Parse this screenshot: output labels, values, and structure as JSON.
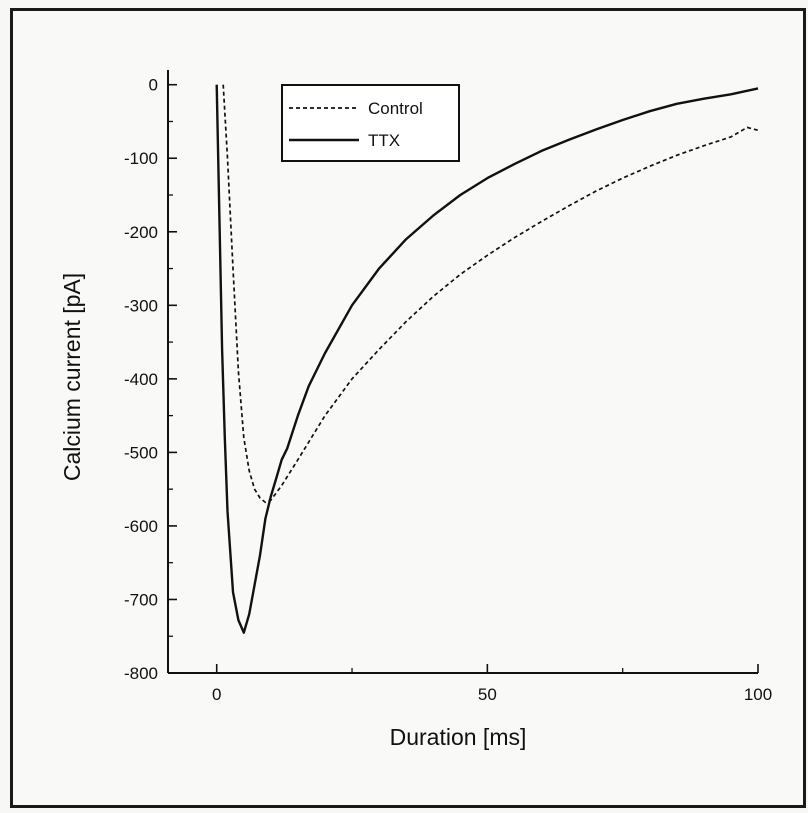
{
  "chart_data": {
    "type": "line",
    "xlabel": "Duration [ms]",
    "ylabel": "Calcium current [pA]",
    "xlim": [
      -9,
      100
    ],
    "ylim": [
      -800,
      20
    ],
    "xticks": [
      0,
      50,
      100
    ],
    "yticks": [
      0,
      -100,
      -200,
      -300,
      -400,
      -500,
      -600,
      -700,
      -800
    ],
    "xtick_labels": [
      "0",
      "50",
      "100"
    ],
    "ytick_labels": [
      "0",
      "-100",
      "-200",
      "-300",
      "-400",
      "-500",
      "-600",
      "-700",
      "-800"
    ],
    "grid": false,
    "legend_position": "top-left",
    "series": [
      {
        "name": "Control",
        "style": "dashed",
        "color": "#111111",
        "x": [
          1.2,
          2,
          3,
          4,
          5,
          6,
          7,
          8,
          9,
          10,
          12,
          15,
          20,
          25,
          30,
          35,
          40,
          45,
          50,
          55,
          60,
          65,
          70,
          75,
          80,
          85,
          90,
          95,
          98,
          100
        ],
        "y": [
          0,
          -100,
          -250,
          -390,
          -480,
          -525,
          -550,
          -562,
          -568,
          -565,
          -545,
          -510,
          -450,
          -400,
          -360,
          -322,
          -288,
          -258,
          -232,
          -208,
          -186,
          -165,
          -145,
          -127,
          -111,
          -96,
          -83,
          -71,
          -58,
          -62
        ]
      },
      {
        "name": "TTX",
        "style": "solid",
        "color": "#111111",
        "x": [
          0,
          0.5,
          1,
          1.5,
          2,
          3,
          4,
          5,
          6,
          7,
          8,
          9,
          10,
          11,
          12,
          13,
          15,
          17,
          20,
          25,
          30,
          35,
          40,
          45,
          50,
          55,
          60,
          65,
          70,
          75,
          80,
          85,
          90,
          95,
          100
        ],
        "y": [
          0,
          -180,
          -360,
          -480,
          -580,
          -690,
          -728,
          -745,
          -720,
          -680,
          -640,
          -590,
          -560,
          -535,
          -510,
          -495,
          -450,
          -410,
          -365,
          -300,
          -250,
          -210,
          -178,
          -150,
          -127,
          -108,
          -90,
          -75,
          -61,
          -48,
          -36,
          -26,
          -19,
          -13,
          -5
        ]
      }
    ]
  }
}
